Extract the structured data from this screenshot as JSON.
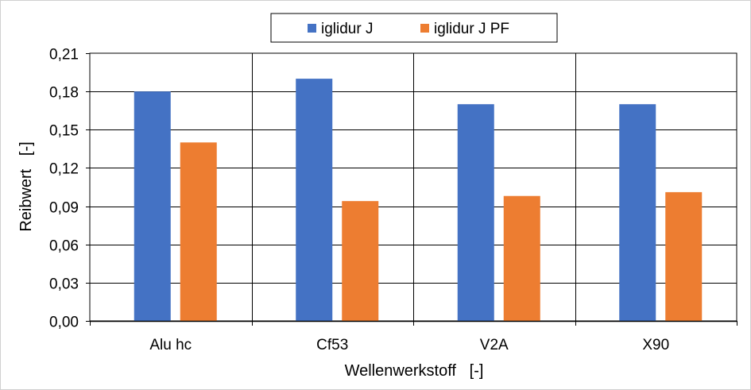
{
  "chart_data": {
    "type": "bar",
    "categories": [
      "Alu hc",
      "Cf53",
      "V2A",
      "X90"
    ],
    "series": [
      {
        "name": "iglidur J",
        "values": [
          0.18,
          0.19,
          0.17,
          0.17
        ],
        "color": "#4472C4"
      },
      {
        "name": "iglidur J PF",
        "values": [
          0.14,
          0.094,
          0.098,
          0.101
        ],
        "color": "#ED7D31"
      }
    ],
    "xlabel": "Wellenwerkstoff   [-]",
    "ylabel": "Reibwert   [-]",
    "ylim": [
      0,
      0.21
    ],
    "yticks": [
      "0,00",
      "0,03",
      "0,06",
      "0,09",
      "0,12",
      "0,15",
      "0,18",
      "0,21"
    ],
    "grid": true,
    "legend_position": "top-center"
  }
}
